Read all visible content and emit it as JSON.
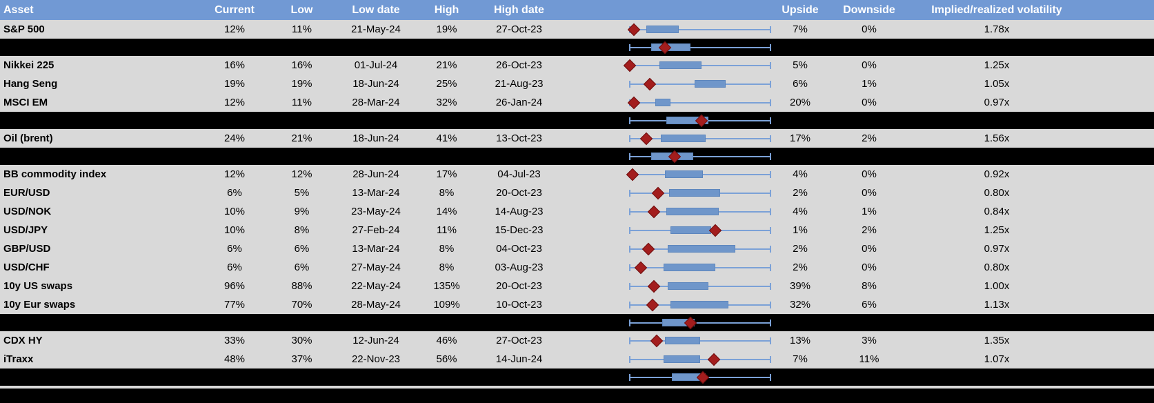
{
  "colors": {
    "header_bg": "#7199d4",
    "header_text": "#ffffff",
    "row_bg": "#d9d9d9",
    "band_bg": "#000000",
    "box_fill": "#6f96ca",
    "whisker": "#7ba1d7",
    "diamond_marker": "#a31d1d"
  },
  "chart_data": {
    "type": "table",
    "columns": [
      "Asset",
      "Current",
      "Low",
      "Low date",
      "High",
      "High date",
      "Upside",
      "Downside",
      "Implied/realized volatility"
    ],
    "embedded_plot": {
      "type": "boxplot",
      "description_units": "percent of whisker span, 0 = range low, 100 = range high",
      "marker": "current value diamond"
    },
    "rows": [
      {
        "kind": "data",
        "asset": "S&P 500",
        "current": "12%",
        "low": "11%",
        "low_date": "21-May-24",
        "high": "19%",
        "high_date": "27-Oct-23",
        "upside": "7%",
        "downside": "0%",
        "implied_realized_vol": "1.78x",
        "range_plot": {
          "diamond_pct": 3,
          "box_start_pct": 12,
          "box_end_pct": 35
        }
      },
      {
        "kind": "separator-band",
        "range_plot": {
          "diamond_pct": 25,
          "box_start_pct": 15,
          "box_end_pct": 43
        }
      },
      {
        "kind": "data",
        "asset": "Nikkei 225",
        "current": "16%",
        "low": "16%",
        "low_date": "01-Jul-24",
        "high": "21%",
        "high_date": "26-Oct-23",
        "upside": "5%",
        "downside": "0%",
        "implied_realized_vol": "1.25x",
        "range_plot": {
          "diamond_pct": 0,
          "box_start_pct": 21,
          "box_end_pct": 51
        }
      },
      {
        "kind": "data",
        "asset": "Hang Seng",
        "current": "19%",
        "low": "19%",
        "low_date": "18-Jun-24",
        "high": "25%",
        "high_date": "21-Aug-23",
        "upside": "6%",
        "downside": "1%",
        "implied_realized_vol": "1.05x",
        "range_plot": {
          "diamond_pct": 14,
          "box_start_pct": 46,
          "box_end_pct": 68
        }
      },
      {
        "kind": "data",
        "asset": "MSCI EM",
        "current": "12%",
        "low": "11%",
        "low_date": "28-Mar-24",
        "high": "32%",
        "high_date": "26-Jan-24",
        "upside": "20%",
        "downside": "0%",
        "implied_realized_vol": "0.97x",
        "range_plot": {
          "diamond_pct": 3,
          "box_start_pct": 18,
          "box_end_pct": 29
        }
      },
      {
        "kind": "separator-band",
        "range_plot": {
          "diamond_pct": 51,
          "box_start_pct": 26,
          "box_end_pct": 56
        }
      },
      {
        "kind": "data",
        "asset": "Oil (brent)",
        "current": "24%",
        "low": "21%",
        "low_date": "18-Jun-24",
        "high": "41%",
        "high_date": "13-Oct-23",
        "upside": "17%",
        "downside": "2%",
        "implied_realized_vol": "1.56x",
        "range_plot": {
          "diamond_pct": 12,
          "box_start_pct": 22,
          "box_end_pct": 54
        }
      },
      {
        "kind": "separator-band",
        "range_plot": {
          "diamond_pct": 32,
          "box_start_pct": 15,
          "box_end_pct": 45
        }
      },
      {
        "kind": "data",
        "asset": "BB commodity index",
        "current": "12%",
        "low": "12%",
        "low_date": "28-Jun-24",
        "high": "17%",
        "high_date": "04-Jul-23",
        "upside": "4%",
        "downside": "0%",
        "implied_realized_vol": "0.92x",
        "range_plot": {
          "diamond_pct": 2,
          "box_start_pct": 25,
          "box_end_pct": 52
        }
      },
      {
        "kind": "data",
        "asset": "EUR/USD",
        "current": "6%",
        "low": "5%",
        "low_date": "13-Mar-24",
        "high": "8%",
        "high_date": "20-Oct-23",
        "upside": "2%",
        "downside": "0%",
        "implied_realized_vol": "0.80x",
        "range_plot": {
          "diamond_pct": 20,
          "box_start_pct": 28,
          "box_end_pct": 64
        }
      },
      {
        "kind": "data",
        "asset": "USD/NOK",
        "current": "10%",
        "low": "9%",
        "low_date": "23-May-24",
        "high": "14%",
        "high_date": "14-Aug-23",
        "upside": "4%",
        "downside": "1%",
        "implied_realized_vol": "0.84x",
        "range_plot": {
          "diamond_pct": 17,
          "box_start_pct": 26,
          "box_end_pct": 63
        }
      },
      {
        "kind": "data",
        "asset": "USD/JPY",
        "current": "10%",
        "low": "8%",
        "low_date": "27-Feb-24",
        "high": "11%",
        "high_date": "15-Dec-23",
        "upside": "1%",
        "downside": "2%",
        "implied_realized_vol": "1.25x",
        "range_plot": {
          "diamond_pct": 61,
          "box_start_pct": 29,
          "box_end_pct": 58
        }
      },
      {
        "kind": "data",
        "asset": "GBP/USD",
        "current": "6%",
        "low": "6%",
        "low_date": "13-Mar-24",
        "high": "8%",
        "high_date": "04-Oct-23",
        "upside": "2%",
        "downside": "0%",
        "implied_realized_vol": "0.97x",
        "range_plot": {
          "diamond_pct": 13,
          "box_start_pct": 27,
          "box_end_pct": 75
        }
      },
      {
        "kind": "data",
        "asset": "USD/CHF",
        "current": "6%",
        "low": "6%",
        "low_date": "27-May-24",
        "high": "8%",
        "high_date": "03-Aug-23",
        "upside": "2%",
        "downside": "0%",
        "implied_realized_vol": "0.80x",
        "range_plot": {
          "diamond_pct": 8,
          "box_start_pct": 24,
          "box_end_pct": 61
        }
      },
      {
        "kind": "data",
        "asset": "10y US swaps",
        "current": "96%",
        "low": "88%",
        "low_date": "22-May-24",
        "high": "135%",
        "high_date": "20-Oct-23",
        "upside": "39%",
        "downside": "8%",
        "implied_realized_vol": "1.00x",
        "range_plot": {
          "diamond_pct": 17,
          "box_start_pct": 27,
          "box_end_pct": 56
        }
      },
      {
        "kind": "data",
        "asset": "10y Eur swaps",
        "current": "77%",
        "low": "70%",
        "low_date": "28-May-24",
        "high": "109%",
        "high_date": "10-Oct-23",
        "upside": "32%",
        "downside": "6%",
        "implied_realized_vol": "1.13x",
        "range_plot": {
          "diamond_pct": 16,
          "box_start_pct": 29,
          "box_end_pct": 70
        }
      },
      {
        "kind": "separator-band",
        "range_plot": {
          "diamond_pct": 43,
          "box_start_pct": 23,
          "box_end_pct": 46
        }
      },
      {
        "kind": "data",
        "asset": "CDX HY",
        "current": "33%",
        "low": "30%",
        "low_date": "12-Jun-24",
        "high": "46%",
        "high_date": "27-Oct-23",
        "upside": "13%",
        "downside": "3%",
        "implied_realized_vol": "1.35x",
        "range_plot": {
          "diamond_pct": 19,
          "box_start_pct": 25,
          "box_end_pct": 50
        }
      },
      {
        "kind": "data",
        "asset": "iTraxx",
        "current": "48%",
        "low": "37%",
        "low_date": "22-Nov-23",
        "high": "56%",
        "high_date": "14-Jun-24",
        "upside": "7%",
        "downside": "11%",
        "implied_realized_vol": "1.07x",
        "range_plot": {
          "diamond_pct": 60,
          "box_start_pct": 24,
          "box_end_pct": 50
        }
      },
      {
        "kind": "separator-band",
        "range_plot": {
          "diamond_pct": 52,
          "box_start_pct": 30,
          "box_end_pct": 54
        }
      }
    ]
  }
}
